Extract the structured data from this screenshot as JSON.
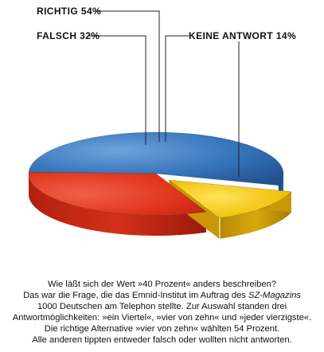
{
  "chart_data": {
    "type": "pie",
    "style": "3d-exploded",
    "slices": [
      {
        "label": "RICHTIG",
        "value": 54,
        "display": "RICHTIG 54%",
        "color": "#2f6fb6"
      },
      {
        "label": "FALSCH",
        "value": 32,
        "display": "FALSCH 32%",
        "color": "#e23a1e"
      },
      {
        "label": "KEINE ANTWORT",
        "value": 14,
        "display": "KEINE ANTWORT 14%",
        "color": "#f2c313"
      }
    ],
    "exploded": "KEINE ANTWORT",
    "legend": "none",
    "labels": "leader-lines"
  },
  "caption": {
    "line1": "Wie läßt sich der Wert »40 Prozent« anders beschreiben?",
    "line2_a": "Das war die Frage, die das Emnid-Institut im Auftrag des ",
    "line2_em": "SZ-Magazins",
    "line3": "1000 Deutschen am Telephon stellte. Zur Auswahl standen drei",
    "line4": "Antwortmöglichkeiten: »ein Viertel«, »vier von zehn« und »jeder vierzigste«.",
    "line5": "Die richtige Alternative »vier von zehn« wählten 54 Prozent.",
    "line6": "Alle anderen tippten entweder falsch oder wollten nicht antworten."
  }
}
